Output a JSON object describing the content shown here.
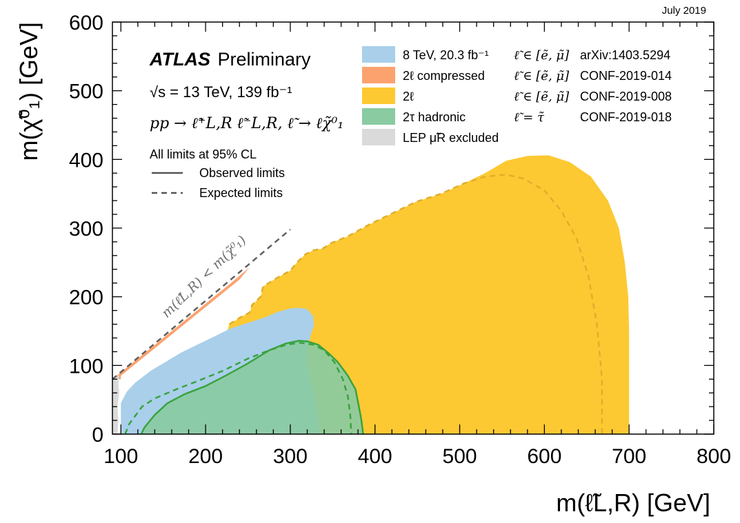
{
  "date_label": "July 2019",
  "experiment": {
    "name": "ATLAS",
    "status": "Preliminary"
  },
  "energy_label": "√s = 13 TeV, 139 fb⁻¹",
  "process_label": "pp → ℓ̃⁺L,R ℓ̃⁻L,R, ℓ̃ → ℓχ̃⁰₁",
  "cl_label": "All limits at 95% CL",
  "line_styles": {
    "observed": "Observed limits",
    "expected": "Expected limits"
  },
  "diagonal_label": "m(ℓ̃L,R) < m(χ̃⁰₁)",
  "colors": {
    "blue": "#a9cfea",
    "orange": "#fca26f",
    "yellow": "#fdc932",
    "green": "#8acba1",
    "grey": "#dadada",
    "green_line": "#39a33f",
    "yellow_line": "#e0ae2c",
    "diag_line": "#606060"
  },
  "chart_data": {
    "type": "area",
    "xlabel": "m(ℓ̃L,R) [GeV]",
    "ylabel": "m(χ̃⁰₁) [GeV]",
    "xlim": [
      90,
      800
    ],
    "ylim": [
      0,
      600
    ],
    "xticks": [
      100,
      200,
      300,
      400,
      500,
      600,
      700,
      800
    ],
    "yticks": [
      0,
      100,
      200,
      300,
      400,
      500,
      600
    ],
    "grid": false,
    "legend_position": "top-right",
    "legend": [
      {
        "label": "8 TeV, 20.3 fb⁻¹",
        "selection": "ℓ̃ ∈ [ẽ, μ̃]",
        "ref": "arXiv:1403.5294",
        "color": "#a9cfea"
      },
      {
        "label": "2ℓ compressed",
        "selection": "ℓ̃ ∈ [ẽ, μ̃]",
        "ref": "CONF-2019-014",
        "color": "#fca26f"
      },
      {
        "label": "2ℓ",
        "selection": "ℓ̃ ∈ [ẽ, μ̃]",
        "ref": "CONF-2019-008",
        "color": "#fdc932"
      },
      {
        "label": "2τ hadronic",
        "selection": "ℓ̃ = τ̃",
        "ref": "CONF-2019-018",
        "color": "#8acba1"
      },
      {
        "label": "LEP μ̃R excluded",
        "selection": "",
        "ref": "",
        "color": "#dadada"
      }
    ],
    "regions": [
      {
        "name": "2ℓ",
        "color": "#fdc932",
        "opacity": 1,
        "points": [
          [
            217,
            0
          ],
          [
            217,
            100
          ],
          [
            223,
            140
          ],
          [
            228,
            160
          ],
          [
            241,
            170
          ],
          [
            252,
            177
          ],
          [
            255,
            188
          ],
          [
            265,
            200
          ],
          [
            268,
            215
          ],
          [
            285,
            228
          ],
          [
            300,
            238
          ],
          [
            308,
            250
          ],
          [
            318,
            262
          ],
          [
            328,
            268
          ],
          [
            338,
            270
          ],
          [
            348,
            278
          ],
          [
            368,
            288
          ],
          [
            393,
            305
          ],
          [
            418,
            320
          ],
          [
            448,
            338
          ],
          [
            478,
            350
          ],
          [
            505,
            365
          ],
          [
            530,
            380
          ],
          [
            555,
            398
          ],
          [
            580,
            405
          ],
          [
            605,
            406
          ],
          [
            630,
            396
          ],
          [
            655,
            375
          ],
          [
            675,
            340
          ],
          [
            688,
            300
          ],
          [
            695,
            250
          ],
          [
            699,
            200
          ],
          [
            700,
            150
          ],
          [
            700,
            100
          ],
          [
            700,
            0
          ]
        ]
      },
      {
        "name": "8 TeV, 20.3 fb⁻¹",
        "color": "#a9cfea",
        "opacity": 1,
        "points": [
          [
            100,
            0
          ],
          [
            100,
            45
          ],
          [
            107,
            62
          ],
          [
            117,
            75
          ],
          [
            135,
            92
          ],
          [
            150,
            103
          ],
          [
            170,
            118
          ],
          [
            190,
            130
          ],
          [
            210,
            142
          ],
          [
            230,
            154
          ],
          [
            250,
            162
          ],
          [
            270,
            170
          ],
          [
            285,
            178
          ],
          [
            300,
            183
          ],
          [
            310,
            184
          ],
          [
            320,
            182
          ],
          [
            327,
            172
          ],
          [
            328,
            158
          ],
          [
            325,
            148
          ],
          [
            320,
            125
          ],
          [
            320,
            100
          ],
          [
            330,
            50
          ],
          [
            335,
            0
          ]
        ]
      },
      {
        "name": "2τ hadronic",
        "color": "#8acba1",
        "opacity": 0.92,
        "points": [
          [
            124,
            0
          ],
          [
            128,
            10
          ],
          [
            140,
            28
          ],
          [
            155,
            45
          ],
          [
            175,
            58
          ],
          [
            200,
            70
          ],
          [
            225,
            86
          ],
          [
            250,
            103
          ],
          [
            275,
            122
          ],
          [
            295,
            132
          ],
          [
            310,
            136
          ],
          [
            320,
            135
          ],
          [
            333,
            130
          ],
          [
            345,
            118
          ],
          [
            356,
            105
          ],
          [
            368,
            85
          ],
          [
            377,
            65
          ],
          [
            381,
            40
          ],
          [
            384,
            20
          ],
          [
            386,
            0
          ]
        ]
      },
      {
        "name": "2ℓ compressed",
        "color": "#fca26f",
        "opacity": 1,
        "points": [
          [
            100,
            80
          ],
          [
            90,
            80
          ],
          [
            110,
            100
          ],
          [
            150,
            140
          ],
          [
            190,
            180
          ],
          [
            230,
            220
          ],
          [
            252,
            243
          ],
          [
            240,
            225
          ],
          [
            200,
            185
          ],
          [
            160,
            145
          ],
          [
            120,
            105
          ],
          [
            100,
            85
          ]
        ]
      },
      {
        "name": "LEP μ̃R excluded",
        "color": "#dadada",
        "opacity": 1,
        "points": [
          [
            90,
            0
          ],
          [
            90,
            80
          ],
          [
            94,
            84
          ],
          [
            98,
            86
          ],
          [
            97,
            75
          ],
          [
            98,
            60
          ],
          [
            96,
            40
          ],
          [
            97,
            20
          ],
          [
            96,
            0
          ]
        ]
      }
    ],
    "lines": [
      {
        "name": "2τ hadronic observed",
        "style": "solid",
        "color": "#39a33f",
        "points": [
          [
            124,
            0
          ],
          [
            128,
            10
          ],
          [
            140,
            28
          ],
          [
            155,
            45
          ],
          [
            175,
            58
          ],
          [
            200,
            70
          ],
          [
            225,
            86
          ],
          [
            250,
            103
          ],
          [
            275,
            122
          ],
          [
            295,
            132
          ],
          [
            310,
            136
          ],
          [
            320,
            135
          ],
          [
            333,
            130
          ],
          [
            345,
            118
          ],
          [
            356,
            105
          ],
          [
            368,
            85
          ],
          [
            377,
            65
          ],
          [
            381,
            40
          ],
          [
            384,
            20
          ],
          [
            386,
            0
          ]
        ]
      },
      {
        "name": "2τ hadronic expected",
        "style": "dashed",
        "color": "#39a33f",
        "points": [
          [
            105,
            0
          ],
          [
            110,
            15
          ],
          [
            125,
            40
          ],
          [
            140,
            52
          ],
          [
            165,
            65
          ],
          [
            190,
            77
          ],
          [
            220,
            92
          ],
          [
            250,
            110
          ],
          [
            275,
            122
          ],
          [
            295,
            130
          ],
          [
            312,
            133
          ],
          [
            328,
            130
          ],
          [
            340,
            122
          ],
          [
            352,
            105
          ],
          [
            362,
            80
          ],
          [
            368,
            55
          ],
          [
            371,
            25
          ],
          [
            372,
            0
          ]
        ]
      },
      {
        "name": "2ℓ expected",
        "style": "dashed",
        "color": "#e0ae2c",
        "points": [
          [
            228,
            160
          ],
          [
            241,
            170
          ],
          [
            252,
            177
          ],
          [
            255,
            188
          ],
          [
            265,
            200
          ],
          [
            268,
            215
          ],
          [
            285,
            228
          ],
          [
            300,
            238
          ],
          [
            308,
            250
          ],
          [
            318,
            262
          ],
          [
            328,
            268
          ],
          [
            338,
            270
          ],
          [
            348,
            278
          ],
          [
            368,
            288
          ],
          [
            393,
            305
          ],
          [
            418,
            320
          ],
          [
            448,
            338
          ],
          [
            478,
            350
          ],
          [
            505,
            365
          ],
          [
            530,
            375
          ],
          [
            555,
            378
          ],
          [
            575,
            372
          ],
          [
            600,
            355
          ],
          [
            620,
            325
          ],
          [
            638,
            285
          ],
          [
            652,
            230
          ],
          [
            662,
            160
          ],
          [
            668,
            80
          ],
          [
            668,
            0
          ]
        ]
      },
      {
        "name": "kinematic boundary",
        "style": "dashed",
        "color": "#606060",
        "points": [
          [
            90,
            80
          ],
          [
            300,
            298
          ]
        ]
      }
    ]
  }
}
